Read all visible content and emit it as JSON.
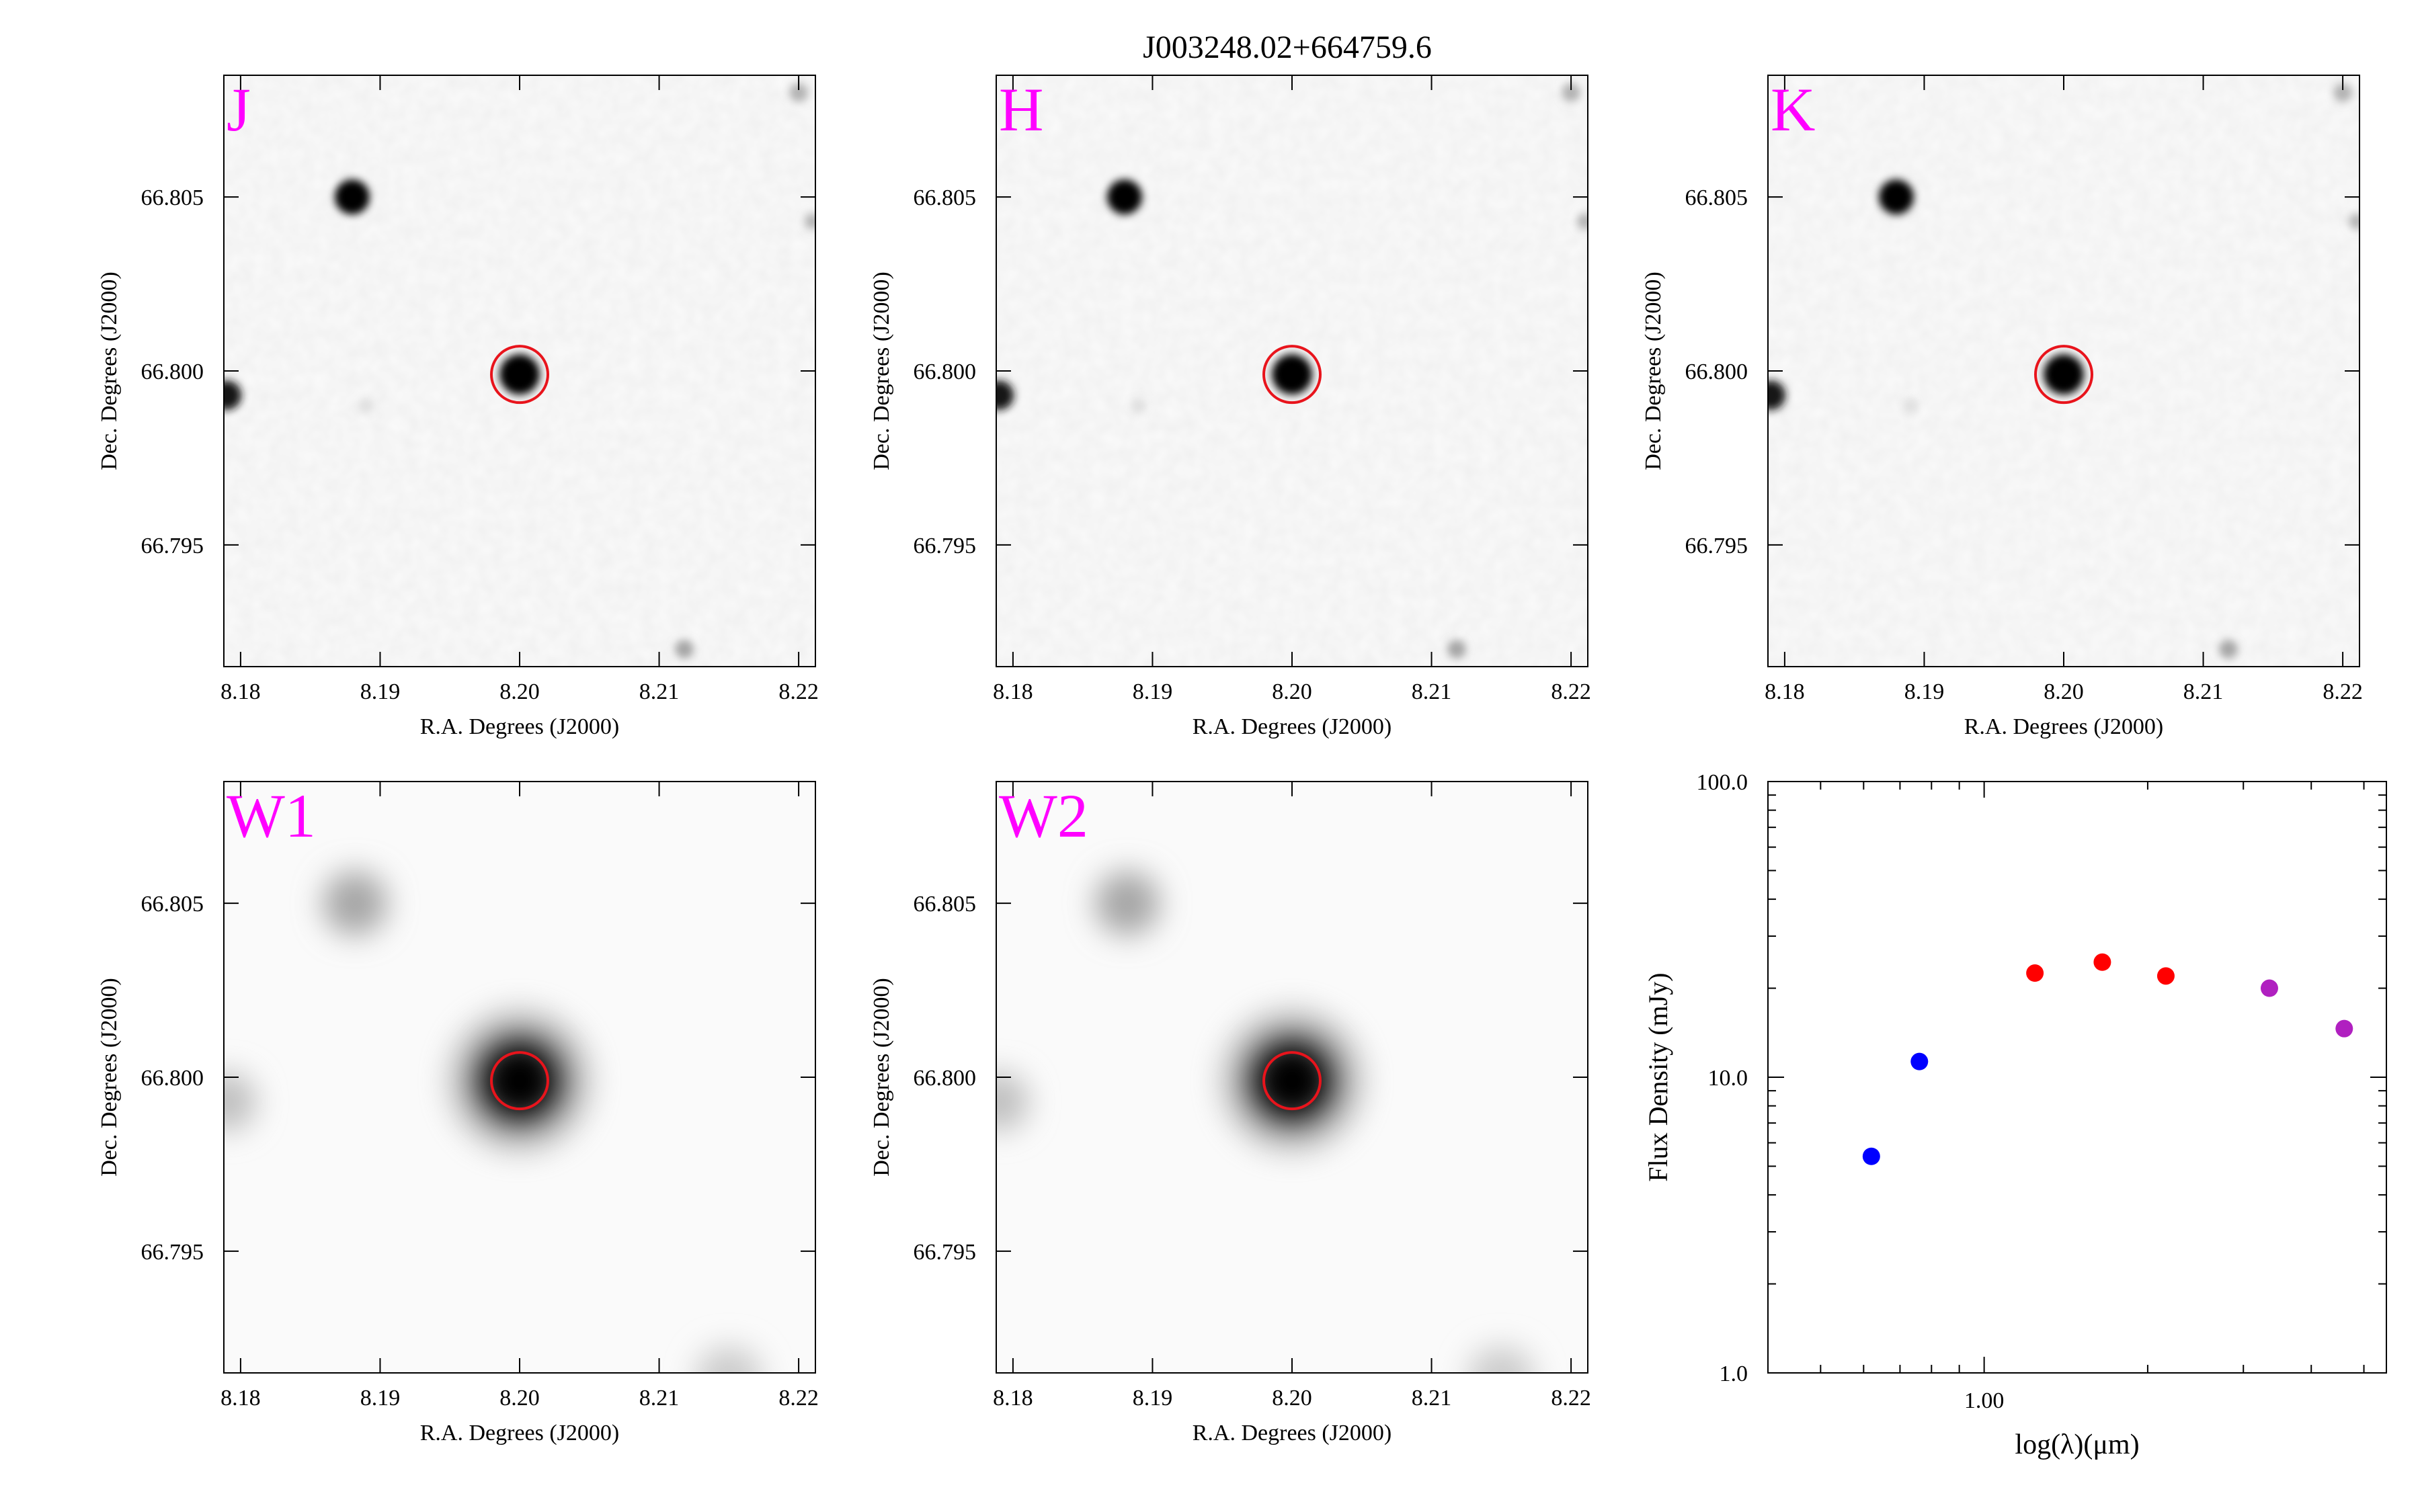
{
  "figure": {
    "title": "J003248.02+664759.6"
  },
  "cutouts": {
    "xlabel": "R.A. Degrees (J2000)",
    "ylabel": "Dec. Degrees (J2000)",
    "ra_range": [
      8.1788,
      8.2212
    ],
    "dec_range": [
      66.7915,
      66.8085
    ],
    "ra_ticks": [
      "8.18",
      "8.19",
      "8.20",
      "8.21",
      "8.22"
    ],
    "dec_ticks": [
      "66.795",
      "66.800",
      "66.805"
    ],
    "band_label_color": "#ff00ff",
    "aperture_color": "#e8141c",
    "target": {
      "ra": 8.2,
      "dec": 66.7999
    },
    "panels": [
      {
        "band": "J",
        "type": "2mass"
      },
      {
        "band": "H",
        "type": "2mass"
      },
      {
        "band": "K",
        "type": "2mass"
      },
      {
        "band": "W1",
        "type": "wise"
      },
      {
        "band": "W2",
        "type": "wise"
      }
    ]
  },
  "chart_data": {
    "type": "scatter",
    "title": "",
    "xlabel": "log(λ)(μm)",
    "ylabel": "Flux Density (mJy)",
    "x_scale": "log",
    "y_scale": "log",
    "xlim": [
      0.4,
      5.5
    ],
    "ylim": [
      1.0,
      100.0
    ],
    "x_ticks": [
      "1.00"
    ],
    "y_ticks": [
      "1.0",
      "10.0",
      "100.0"
    ],
    "grid": false,
    "points": [
      {
        "x": 0.62,
        "y": 5.4,
        "color": "#0000ff"
      },
      {
        "x": 0.76,
        "y": 11.3,
        "color": "#0000ff"
      },
      {
        "x": 1.24,
        "y": 22.5,
        "color": "#ff0000"
      },
      {
        "x": 1.65,
        "y": 24.5,
        "color": "#ff0000"
      },
      {
        "x": 2.16,
        "y": 22.0,
        "color": "#ff0000"
      },
      {
        "x": 3.35,
        "y": 20.0,
        "color": "#b020c0"
      },
      {
        "x": 4.6,
        "y": 14.6,
        "color": "#b020c0"
      }
    ]
  }
}
